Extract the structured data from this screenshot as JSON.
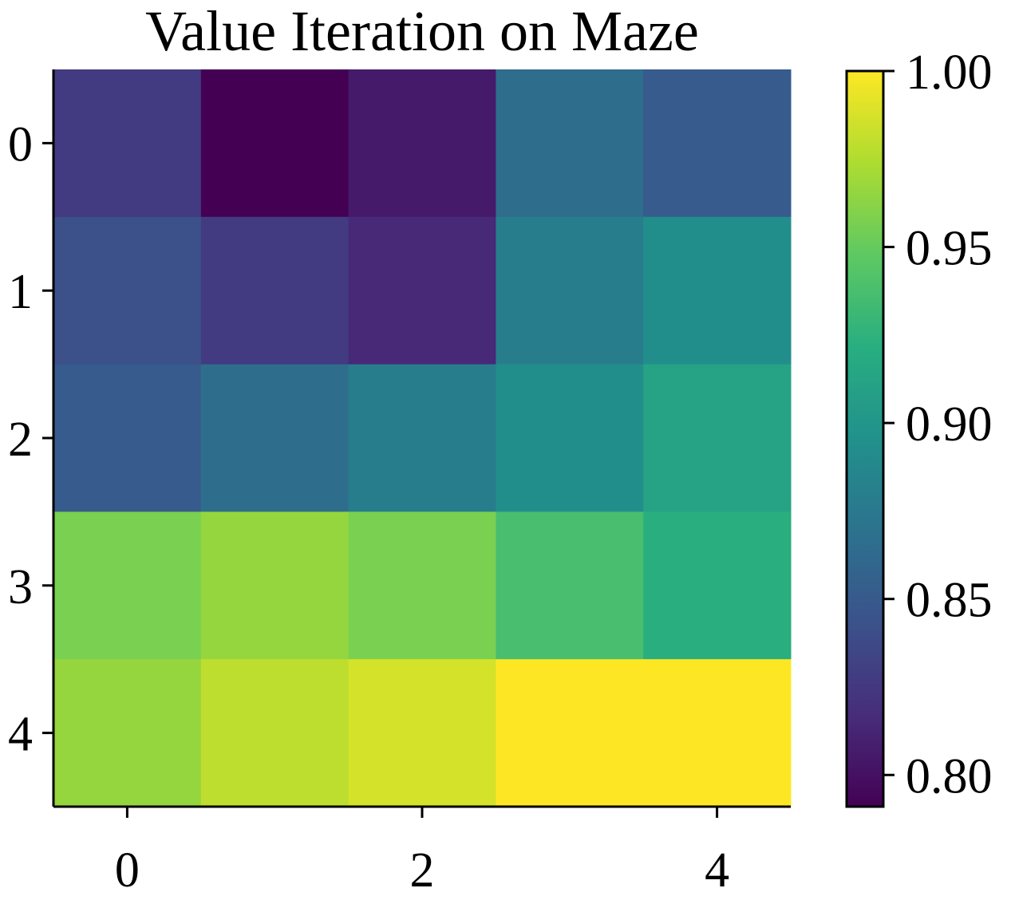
{
  "chart_data": {
    "type": "heatmap",
    "title": "Value Iteration on Maze",
    "xlabel": "",
    "ylabel": "",
    "rows": 5,
    "cols": 5,
    "values": [
      [
        0.827,
        0.791,
        0.806,
        0.865,
        0.851
      ],
      [
        0.842,
        0.827,
        0.815,
        0.879,
        0.893
      ],
      [
        0.851,
        0.865,
        0.879,
        0.893,
        0.912
      ],
      [
        0.957,
        0.966,
        0.957,
        0.937,
        0.922
      ],
      [
        0.966,
        0.979,
        0.987,
        1.0,
        1.0
      ]
    ],
    "x_ticks": [
      0,
      2,
      4
    ],
    "x_tick_labels": [
      "0",
      "2",
      "4"
    ],
    "y_ticks": [
      0,
      1,
      2,
      3,
      4
    ],
    "y_tick_labels": [
      "0",
      "1",
      "2",
      "3",
      "4"
    ],
    "colormap": "viridis",
    "colorbar": {
      "vmin": 0.791,
      "vmax": 1.0,
      "ticks": [
        0.8,
        0.85,
        0.9,
        0.95,
        1.0
      ],
      "tick_labels": [
        "0.80",
        "0.85",
        "0.90",
        "0.95",
        "1.00"
      ]
    },
    "grid": false
  }
}
